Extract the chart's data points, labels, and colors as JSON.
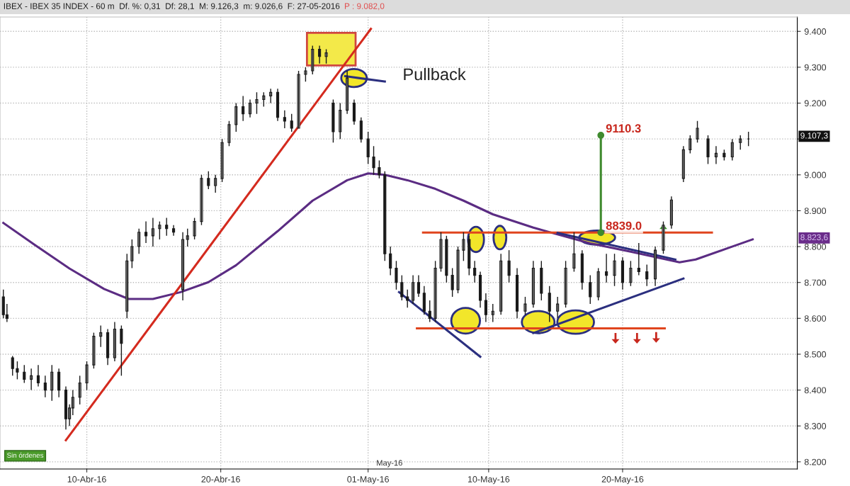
{
  "chart_data": {
    "type": "candlestick",
    "title": "IBEX - IBEX 35 INDEX - 60 m  Df. %: 0,31  Df: 28,1  M: 9.126,3  m: 9.026,6  F: 27-05-2016",
    "subtitle": "P : 9.082,0",
    "color": "#1a1a1a",
    "x": [
      "2016-04-03T18:30",
      "2016-04-04T01:00",
      "2016-04-04T11:00",
      "2016-04-04T19:30",
      "2016-04-05T08:00",
      "2016-04-05T20:30",
      "2016-04-06T09:00",
      "2016-04-06T21:30",
      "2016-04-07T09:30",
      "2016-04-07T22:00",
      "2016-04-08T10:30",
      "2016-04-08T17:00",
      "2016-04-08T23:00",
      "2016-04-09T11:30",
      "2016-04-10T00:00",
      "2016-04-10T12:30",
      "2016-04-11T01:00",
      "2016-04-11T13:30",
      "2016-04-12T02:00",
      "2016-04-12T14:00",
      "2016-04-13T00:00",
      "2016-04-13T09:00",
      "2016-04-13T21:30",
      "2016-04-14T10:00",
      "2016-04-14T22:30",
      "2016-04-15T10:30",
      "2016-04-15T23:00",
      "2016-04-16T11:30",
      "2016-04-17T04:00",
      "2016-04-17T12:30",
      "2016-04-18T01:00",
      "2016-04-18T13:30",
      "2016-04-19T02:00",
      "2016-04-19T14:30",
      "2016-04-20T02:30",
      "2016-04-20T15:00",
      "2016-04-21T03:30",
      "2016-04-21T16:00",
      "2016-04-22T04:30",
      "2016-04-22T16:30",
      "2016-04-23T05:00",
      "2016-04-23T17:30",
      "2016-04-24T06:00",
      "2016-04-24T18:30",
      "2016-04-25T07:00",
      "2016-04-25T19:30",
      "2016-04-26T08:00",
      "2016-04-26T20:30",
      "2016-04-27T09:00",
      "2016-04-27T21:00",
      "2016-04-28T09:30",
      "2016-04-28T22:00",
      "2016-04-29T10:30",
      "2016-04-29T23:00",
      "2016-04-30T11:30",
      "2016-05-01T00:00",
      "2016-05-01T10:00",
      "2016-05-01T20:00",
      "2016-05-02T06:00",
      "2016-05-02T16:00",
      "2016-05-03T02:30",
      "2016-05-03T12:30",
      "2016-05-03T22:30",
      "2016-05-04T08:30",
      "2016-05-04T18:30",
      "2016-05-05T04:30",
      "2016-05-05T14:30",
      "2016-05-06T00:30",
      "2016-05-06T10:30",
      "2016-05-06T20:30",
      "2016-05-07T07:00",
      "2016-05-07T17:00",
      "2016-05-08T03:00",
      "2016-05-08T13:00",
      "2016-05-08T23:00",
      "2016-05-09T09:00",
      "2016-05-09T19:00",
      "2016-05-10T07:30",
      "2016-05-10T22:00",
      "2016-05-11T12:30",
      "2016-05-12T03:00",
      "2016-05-12T17:30",
      "2016-05-13T08:00",
      "2016-05-13T22:30",
      "2016-05-14T13:00",
      "2016-05-15T03:30",
      "2016-05-15T18:00",
      "2016-05-16T09:00",
      "2016-05-16T23:30",
      "2016-05-17T14:00",
      "2016-05-18T04:30",
      "2016-05-18T19:00",
      "2016-05-19T09:30",
      "2016-05-20T00:00",
      "2016-05-20T14:30",
      "2016-05-21T05:00",
      "2016-05-21T19:30",
      "2016-05-22T10:30",
      "2016-05-23T01:00",
      "2016-05-23T15:30",
      "2016-05-24T13:00",
      "2016-05-25T01:00",
      "2016-05-25T14:00",
      "2016-05-26T09:00",
      "2016-05-26T23:30",
      "2016-05-27T14:00",
      "2016-05-28T04:30",
      "2016-05-28T19:00",
      "2016-05-29T09:30"
    ],
    "ohlc": [
      [
        8660,
        8680,
        8600,
        8610
      ],
      [
        8610,
        8640,
        8590,
        8600
      ],
      [
        8490,
        8495,
        8440,
        8460
      ],
      [
        8460,
        8480,
        8430,
        8450
      ],
      [
        8450,
        8470,
        8420,
        8430
      ],
      [
        8430,
        8460,
        8400,
        8440
      ],
      [
        8440,
        8470,
        8410,
        8420
      ],
      [
        8420,
        8440,
        8380,
        8400
      ],
      [
        8400,
        8470,
        8370,
        8450
      ],
      [
        8450,
        8460,
        8380,
        8400
      ],
      [
        8400,
        8410,
        8290,
        8320
      ],
      [
        8320,
        8360,
        8300,
        8350
      ],
      [
        8350,
        8400,
        8330,
        8380
      ],
      [
        8380,
        8440,
        8360,
        8420
      ],
      [
        8420,
        8480,
        8400,
        8470
      ],
      [
        8470,
        8560,
        8460,
        8550
      ],
      [
        8550,
        8580,
        8520,
        8560
      ],
      [
        8560,
        8570,
        8470,
        8490
      ],
      [
        8490,
        8590,
        8480,
        8570
      ],
      [
        8570,
        8580,
        8440,
        8530
      ],
      [
        8620,
        8780,
        8600,
        8760
      ],
      [
        8760,
        8820,
        8740,
        8800
      ],
      [
        8800,
        8850,
        8780,
        8840
      ],
      [
        8840,
        8870,
        8810,
        8830
      ],
      [
        8830,
        8880,
        8800,
        8850
      ],
      [
        8850,
        8870,
        8820,
        8860
      ],
      [
        8860,
        8880,
        8830,
        8850
      ],
      [
        8850,
        8860,
        8830,
        8840
      ],
      [
        8680,
        8840,
        8650,
        8820
      ],
      [
        8820,
        8850,
        8800,
        8830
      ],
      [
        8830,
        8880,
        8820,
        8870
      ],
      [
        8870,
        9000,
        8860,
        8990
      ],
      [
        8990,
        9010,
        8960,
        8970
      ],
      [
        8970,
        9000,
        8950,
        8990
      ],
      [
        8990,
        9100,
        8980,
        9090
      ],
      [
        9090,
        9150,
        9080,
        9140
      ],
      [
        9140,
        9200,
        9120,
        9190
      ],
      [
        9190,
        9220,
        9150,
        9170
      ],
      [
        9170,
        9210,
        9160,
        9200
      ],
      [
        9200,
        9230,
        9170,
        9210
      ],
      [
        9210,
        9230,
        9190,
        9220
      ],
      [
        9220,
        9240,
        9200,
        9230
      ],
      [
        9230,
        9240,
        9150,
        9160
      ],
      [
        9160,
        9180,
        9130,
        9150
      ],
      [
        9150,
        9170,
        9120,
        9130
      ],
      [
        9130,
        9290,
        9130,
        9280
      ],
      [
        9280,
        9300,
        9260,
        9290
      ],
      [
        9290,
        9360,
        9280,
        9350
      ],
      [
        9350,
        9360,
        9310,
        9330
      ],
      [
        9330,
        9350,
        9310,
        9340
      ],
      [
        9200,
        9210,
        9090,
        9120
      ],
      [
        9120,
        9200,
        9100,
        9180
      ],
      [
        9180,
        9290,
        9170,
        9270
      ],
      [
        9200,
        9210,
        9140,
        9150
      ],
      [
        9150,
        9160,
        9090,
        9100
      ],
      [
        9100,
        9120,
        9030,
        9050
      ],
      [
        9050,
        9080,
        9000,
        9020
      ],
      [
        9020,
        9040,
        8990,
        9000
      ],
      [
        9000,
        9010,
        8760,
        8780
      ],
      [
        8780,
        8800,
        8720,
        8740
      ],
      [
        8740,
        8760,
        8680,
        8700
      ],
      [
        8700,
        8720,
        8650,
        8660
      ],
      [
        8660,
        8680,
        8630,
        8650
      ],
      [
        8650,
        8720,
        8640,
        8700
      ],
      [
        8700,
        8720,
        8660,
        8670
      ],
      [
        8670,
        8690,
        8610,
        8620
      ],
      [
        8620,
        8650,
        8590,
        8600
      ],
      [
        8600,
        8760,
        8590,
        8740
      ],
      [
        8740,
        8840,
        8730,
        8820
      ],
      [
        8820,
        8830,
        8700,
        8720
      ],
      [
        8720,
        8740,
        8660,
        8680
      ],
      [
        8680,
        8800,
        8670,
        8790
      ],
      [
        8790,
        8840,
        8760,
        8820
      ],
      [
        8820,
        8830,
        8720,
        8740
      ],
      [
        8740,
        8760,
        8700,
        8720
      ],
      [
        8720,
        8730,
        8630,
        8650
      ],
      [
        8650,
        8670,
        8590,
        8610
      ],
      [
        8610,
        8640,
        8590,
        8620
      ],
      [
        8620,
        8780,
        8610,
        8760
      ],
      [
        8760,
        8790,
        8700,
        8720
      ],
      [
        8720,
        8740,
        8600,
        8620
      ],
      [
        8620,
        8660,
        8610,
        8640
      ],
      [
        8640,
        8760,
        8630,
        8740
      ],
      [
        8740,
        8760,
        8650,
        8670
      ],
      [
        8670,
        8690,
        8590,
        8620
      ],
      [
        8620,
        8660,
        8600,
        8640
      ],
      [
        8640,
        8760,
        8630,
        8740
      ],
      [
        8740,
        8840,
        8730,
        8780
      ],
      [
        8780,
        8790,
        8680,
        8700
      ],
      [
        8700,
        8720,
        8640,
        8660
      ],
      [
        8660,
        8740,
        8650,
        8730
      ],
      [
        8730,
        8780,
        8700,
        8720
      ],
      [
        8720,
        8780,
        8690,
        8760
      ],
      [
        8760,
        8770,
        8680,
        8700
      ],
      [
        8700,
        8760,
        8690,
        8740
      ],
      [
        8740,
        8810,
        8720,
        8730
      ],
      [
        8730,
        8750,
        8690,
        8710
      ],
      [
        8710,
        8800,
        8690,
        8790
      ],
      [
        8790,
        8870,
        8780,
        8860
      ],
      [
        8860,
        8940,
        8850,
        8930
      ],
      [
        8990,
        9080,
        8980,
        9070
      ],
      [
        9070,
        9110,
        9060,
        9100
      ],
      [
        9100,
        9150,
        9090,
        9130
      ],
      [
        9100,
        9110,
        9030,
        9050
      ],
      [
        9050,
        9080,
        9030,
        9060
      ],
      [
        9060,
        9070,
        9040,
        9050
      ],
      [
        9050,
        9100,
        9040,
        9090
      ],
      [
        9090,
        9110,
        9070,
        9100
      ],
      [
        9100,
        9120,
        9080,
        9100
      ]
    ],
    "series": [
      {
        "type": "line",
        "color": "#5b2c83",
        "x": [
          "2016-04-03T18:30",
          "2016-04-06T02:30",
          "2016-04-08T17:00",
          "2016-04-11T07:00",
          "2016-04-13T03:00",
          "2016-04-14T22:30",
          "2016-04-17T00:00",
          "2016-04-19T02:00",
          "2016-04-21T03:30",
          "2016-04-24T06:00",
          "2016-04-26T20:30",
          "2016-04-29T10:30",
          "2016-05-01T00:00",
          "2016-05-02T06:00",
          "2016-05-03T22:30",
          "2016-05-06T00:30",
          "2016-05-08T03:00",
          "2016-05-10T07:30",
          "2016-05-13T08:00",
          "2016-05-15T03:30",
          "2016-05-17T14:00",
          "2016-05-20T14:30",
          "2016-05-24T06:00",
          "2016-05-25T11:00",
          "2016-05-27T21:00",
          "2016-05-29T17:00"
        ],
        "values": [
          8866,
          8805,
          8739,
          8682,
          8654,
          8654,
          8673,
          8701,
          8748,
          8843,
          8928,
          8985,
          9004,
          9000,
          8985,
          8961,
          8928,
          8890,
          8853,
          8834,
          8809,
          8786,
          8756,
          8764,
          8796,
          8820
        ]
      },
      {
        "type": "line",
        "color": "#d42a1e",
        "x": [
          "2016-04-08T10:30",
          "2016-05-01T05:00"
        ],
        "values": [
          8260,
          9407
        ]
      },
      {
        "type": "line",
        "color": "#e0451e",
        "x": [
          "2016-05-05T02:30",
          "2016-05-26T16:00"
        ],
        "values": [
          8839,
          8839
        ]
      },
      {
        "type": "line",
        "color": "#e0451e",
        "x": [
          "2016-05-04T15:30",
          "2016-05-23T03:30"
        ],
        "values": [
          8572,
          8572
        ]
      },
      {
        "type": "line",
        "color": "#2b2f7f",
        "x": [
          "2016-05-03T07:30",
          "2016-05-09T09:00"
        ],
        "values": [
          8673,
          8493
        ]
      },
      {
        "type": "line",
        "color": "#2b2f7f",
        "x": [
          "2016-05-13T08:00",
          "2016-05-24T13:00"
        ],
        "values": [
          8559,
          8711
        ]
      },
      {
        "type": "line",
        "color": "#2b2f7f",
        "x": [
          "2016-05-15T03:30",
          "2016-05-23T22:30"
        ],
        "values": [
          8838,
          8764
        ]
      },
      {
        "type": "line",
        "color": "#2b2f7f",
        "x": [
          "2016-04-29T07:00",
          "2016-05-02T06:00"
        ],
        "values": [
          9275,
          9260
        ]
      },
      {
        "type": "line",
        "color": "#3f8a2e",
        "x": [
          "2016-05-18T09:00",
          "2016-05-18T09:00"
        ],
        "values": [
          8839,
          9110.3
        ],
        "marker": "circle"
      }
    ],
    "xlim": [
      "2016-04-03T12:30",
      "2016-06-02T01:00"
    ],
    "xticks": [
      {
        "value": "2016-04-10",
        "label": "10-Abr-16"
      },
      {
        "value": "2016-04-20",
        "label": "20-Abr-16"
      },
      {
        "value": "2016-05-01",
        "label": "01-May-16"
      },
      {
        "value": "2016-05-10",
        "label": "10-May-16"
      },
      {
        "value": "2016-05-20",
        "label": "20-May-16"
      }
    ],
    "ylim": [
      8180,
      9440
    ],
    "yticks": [
      {
        "value": 8200,
        "label": "8.200"
      },
      {
        "value": 8300,
        "label": "8.300"
      },
      {
        "value": 8400,
        "label": "8.400"
      },
      {
        "value": 8500,
        "label": "8.500"
      },
      {
        "value": 8600,
        "label": "8.600"
      },
      {
        "value": 8700,
        "label": "8.700"
      },
      {
        "value": 8800,
        "label": "8.800"
      },
      {
        "value": 8900,
        "label": "8.900"
      },
      {
        "value": 9000,
        "label": "9.000"
      },
      {
        "value": 9100,
        "label": null
      },
      {
        "value": 9200,
        "label": "9.200"
      },
      {
        "value": 9300,
        "label": "9.300"
      },
      {
        "value": 9400,
        "label": "9.400"
      }
    ],
    "grid": true,
    "annotations": [
      "Pullback",
      {
        "text": "9110.3",
        "x": "2016-05-18T09:00",
        "y": 9110.3
      },
      {
        "text": "8839.0",
        "x": "2016-05-18T09:00",
        "y": 8839
      },
      "9.107,3",
      "8.823,6",
      "May-16",
      "Sin órdenes"
    ]
  }
}
